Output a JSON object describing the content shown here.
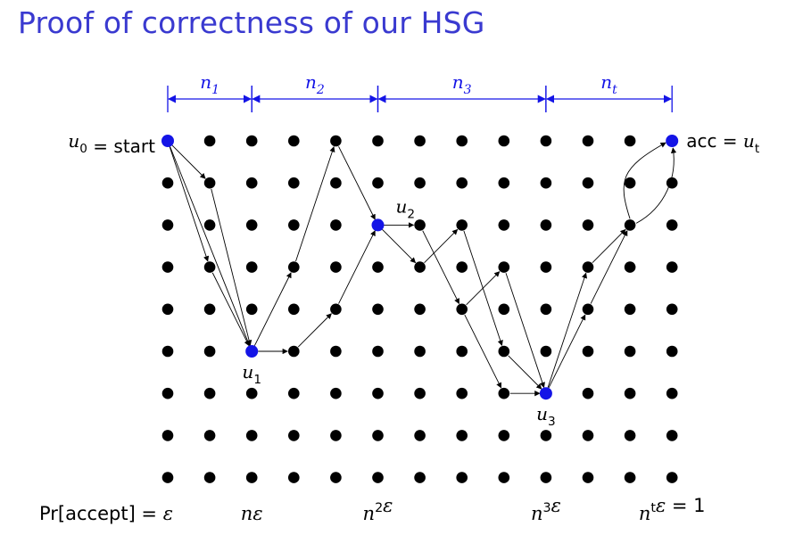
{
  "title": "Proof of correctness of our HSG",
  "grid": {
    "cols": 13,
    "rows": 9
  },
  "spans": [
    {
      "label": "n",
      "sub": "1",
      "from": 0,
      "to": 2
    },
    {
      "label": "n",
      "sub": "2",
      "from": 2,
      "to": 5
    },
    {
      "label": "n",
      "sub": "3",
      "from": 5,
      "to": 9
    },
    {
      "label": "n",
      "sub": "t",
      "from": 9,
      "to": 12
    }
  ],
  "special_nodes": [
    {
      "col": 0,
      "row": 0,
      "name": "u",
      "sub": "0",
      "suffix": " = start",
      "side": "left"
    },
    {
      "col": 2,
      "row": 5,
      "name": "u",
      "sub": "1",
      "suffix": "",
      "side": "below"
    },
    {
      "col": 5,
      "row": 2,
      "name": "u",
      "sub": "2",
      "suffix": "",
      "side": "above"
    },
    {
      "col": 9,
      "row": 6,
      "name": "u",
      "sub": "3",
      "suffix": "",
      "side": "below"
    },
    {
      "col": 12,
      "row": 0,
      "name": "acc = ",
      "sub": "",
      "tail": "u",
      "tailsub": "t",
      "side": "right"
    }
  ],
  "paths": [
    [
      [
        0,
        0
      ],
      [
        1,
        1
      ],
      [
        2,
        5
      ]
    ],
    [
      [
        0,
        0
      ],
      [
        1,
        3
      ],
      [
        2,
        5
      ]
    ],
    [
      [
        0,
        0
      ],
      [
        2,
        5
      ]
    ],
    [
      [
        2,
        5
      ],
      [
        3,
        3
      ],
      [
        4,
        0
      ],
      [
        5,
        2
      ]
    ],
    [
      [
        2,
        5
      ],
      [
        3,
        5
      ],
      [
        4,
        4
      ],
      [
        5,
        2
      ]
    ],
    [
      [
        5,
        2
      ],
      [
        6,
        2
      ],
      [
        7,
        4
      ],
      [
        8,
        6
      ],
      [
        9,
        6
      ]
    ],
    [
      [
        5,
        2
      ],
      [
        6,
        3
      ],
      [
        7,
        2
      ],
      [
        8,
        5
      ],
      [
        9,
        6
      ]
    ],
    [
      [
        7,
        4
      ],
      [
        8,
        3
      ],
      [
        9,
        6
      ]
    ],
    [
      [
        9,
        6
      ],
      [
        10,
        3
      ],
      [
        11,
        2
      ]
    ],
    [
      [
        9,
        6
      ],
      [
        10,
        4
      ],
      [
        11,
        2
      ]
    ]
  ],
  "top_curves": [
    {
      "from": [
        11,
        2
      ],
      "to": [
        12,
        0
      ],
      "bend": "left"
    },
    {
      "from": [
        11,
        2
      ],
      "to": [
        12,
        0
      ],
      "bend": "right"
    }
  ],
  "bottom_labels": [
    {
      "col": 0,
      "parts": [
        [
          "plain",
          "Pr[accept] = "
        ],
        [
          "math",
          "ε"
        ]
      ],
      "anchor": "end"
    },
    {
      "col": 2,
      "parts": [
        [
          "math",
          "nε"
        ]
      ],
      "anchor": "middle"
    },
    {
      "col": 5,
      "parts": [
        [
          "math",
          "n"
        ],
        [
          "sup",
          "2"
        ],
        [
          "math",
          "ε"
        ]
      ],
      "anchor": "middle"
    },
    {
      "col": 9,
      "parts": [
        [
          "math",
          "n"
        ],
        [
          "sup",
          "3"
        ],
        [
          "math",
          "ε"
        ]
      ],
      "anchor": "middle"
    },
    {
      "col": 12,
      "parts": [
        [
          "math",
          "n"
        ],
        [
          "sup",
          "t"
        ],
        [
          "math",
          "ε"
        ],
        [
          "plain",
          " = 1"
        ]
      ],
      "anchor": "middle"
    }
  ],
  "colors": {
    "blue": "#1414e6",
    "title": "#3a3ad0",
    "dot": "#000000"
  }
}
